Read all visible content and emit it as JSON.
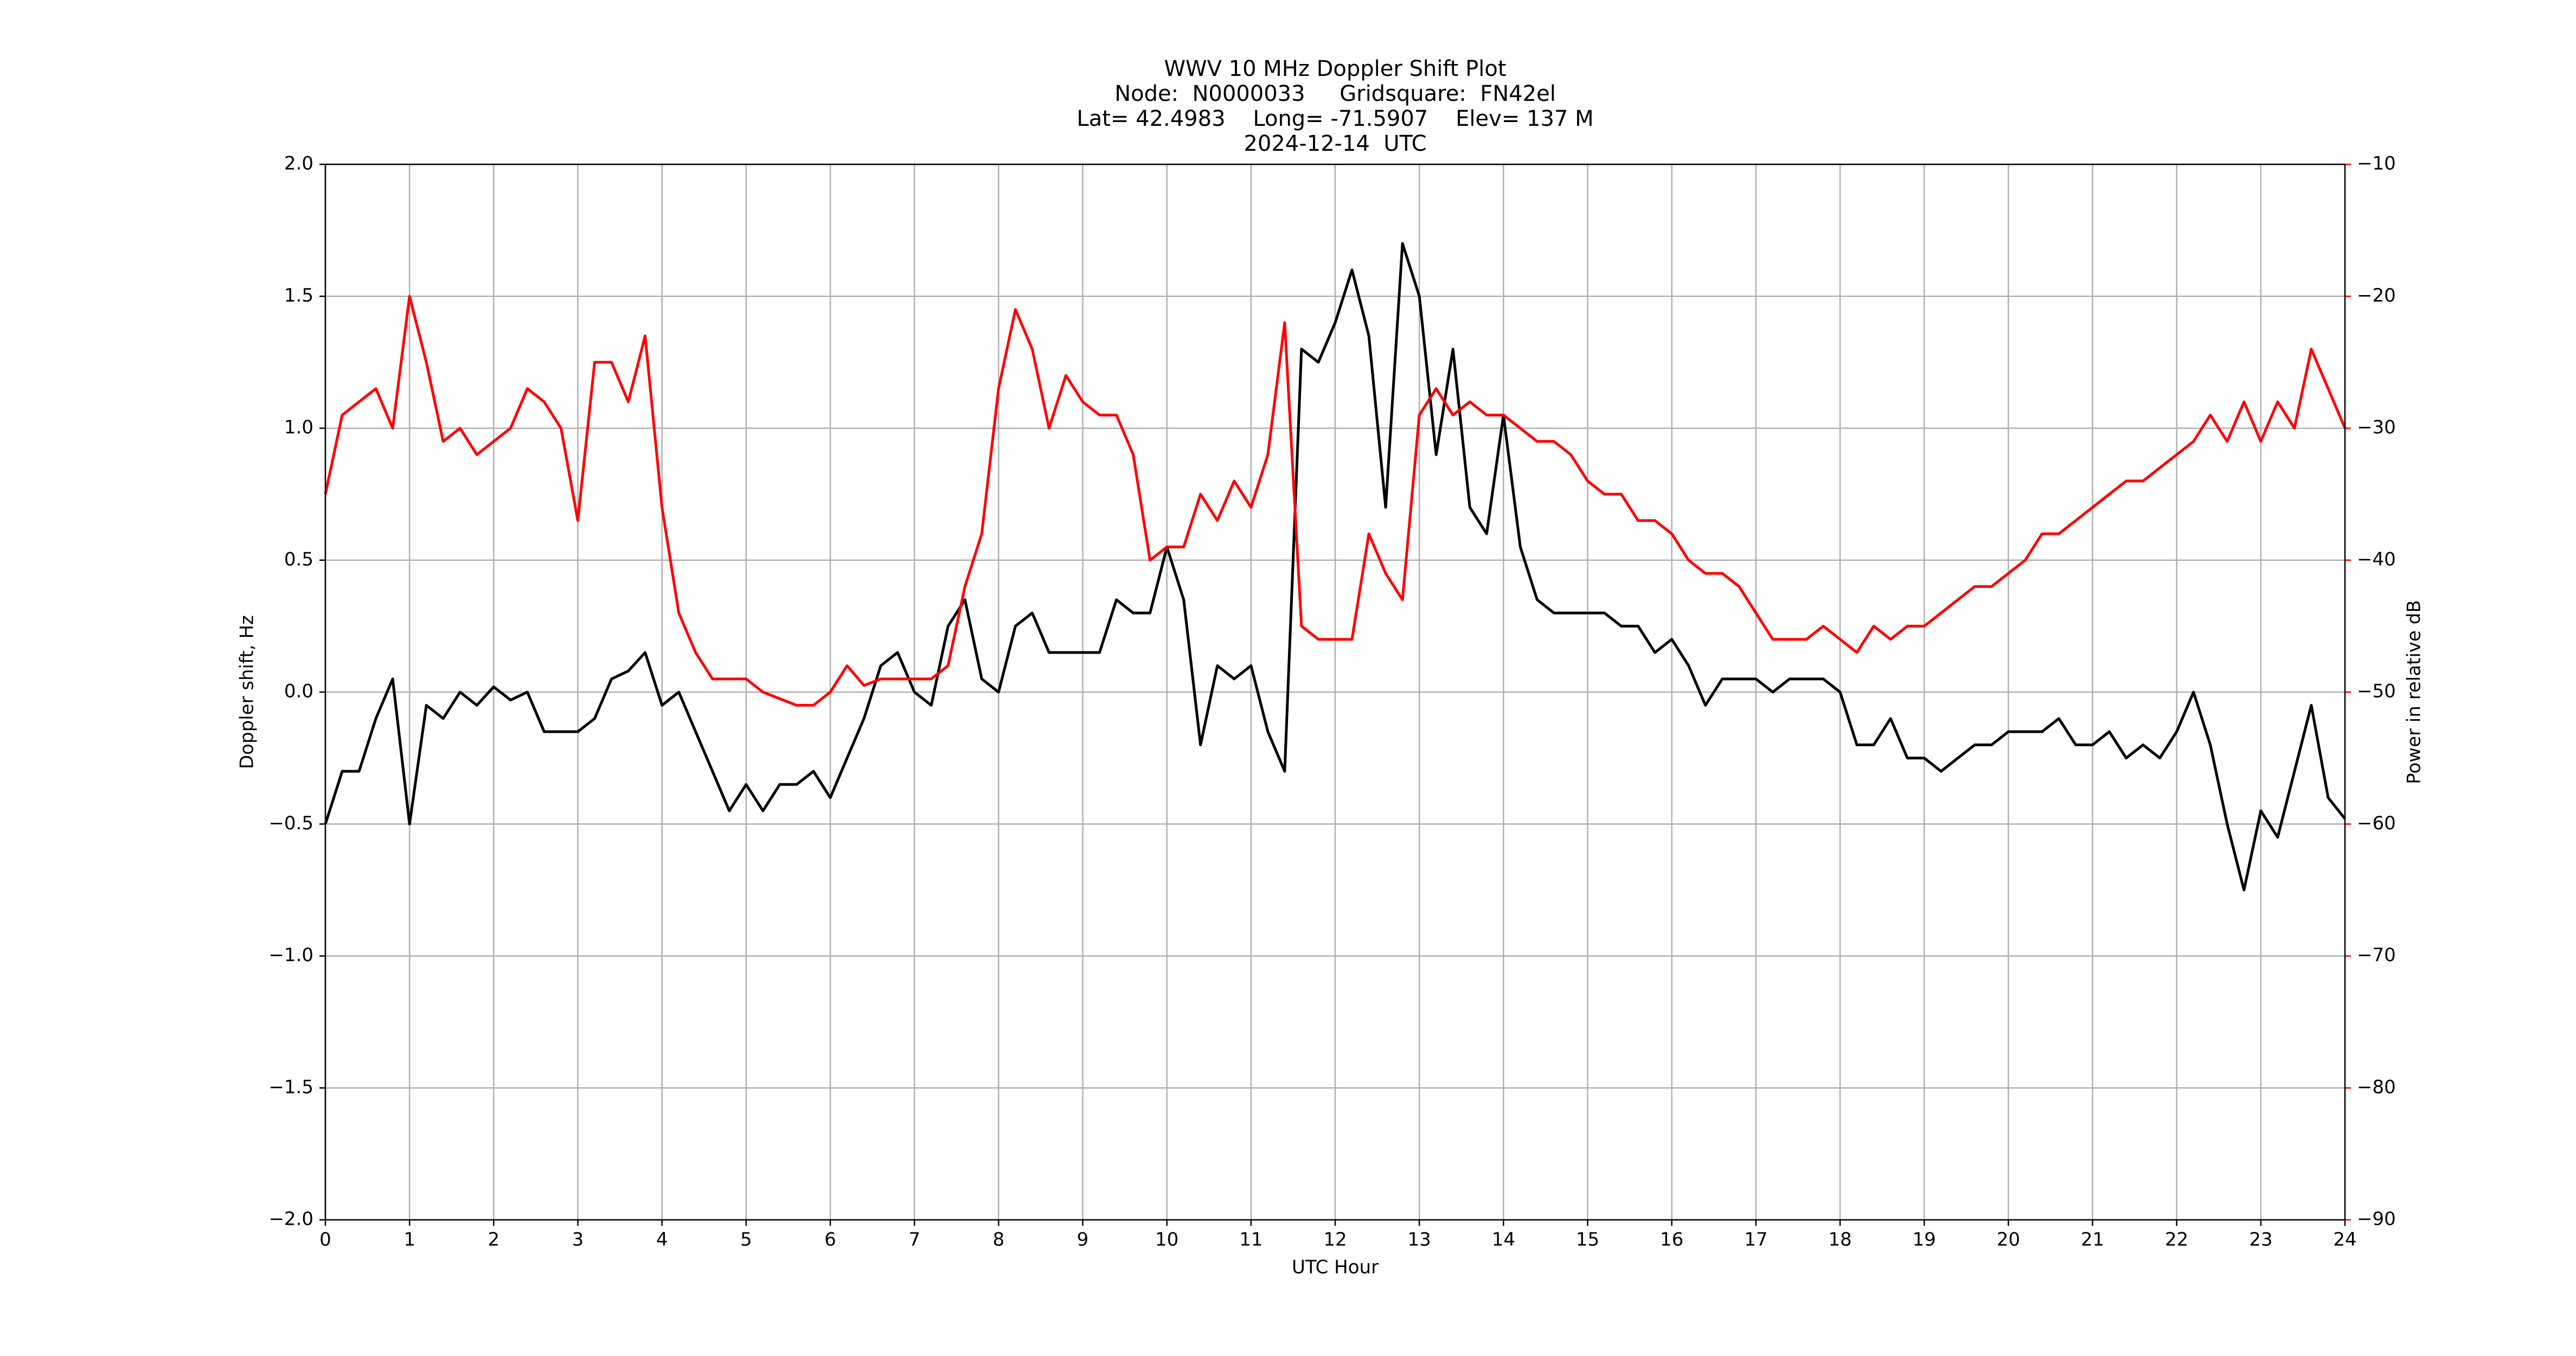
{
  "chart_data": {
    "type": "line",
    "title": "WWV 10 MHz Doppler Shift Plot",
    "subtitle_lines": [
      "Node:  N0000033     Gridsquare:  FN42el",
      "Lat= 42.4983    Long= -71.5907    Elev= 137 M",
      "2024-12-14  UTC"
    ],
    "xlabel": "UTC Hour",
    "ylabel": "Doppler shift, Hz",
    "y2label": "Power in relative dB",
    "x": [
      0,
      0.2,
      0.4,
      0.6,
      0.8,
      1,
      1.2,
      1.4,
      1.6,
      1.8,
      2,
      2.2,
      2.4,
      2.6,
      2.8,
      3,
      3.2,
      3.4,
      3.6,
      3.8,
      4,
      4.2,
      4.4,
      4.6,
      4.8,
      5,
      5.2,
      5.4,
      5.6,
      5.8,
      6,
      6.2,
      6.4,
      6.6,
      6.8,
      7,
      7.2,
      7.4,
      7.6,
      7.8,
      8,
      8.2,
      8.4,
      8.6,
      8.8,
      9,
      9.2,
      9.4,
      9.6,
      9.8,
      10,
      10.2,
      10.4,
      10.6,
      10.8,
      11,
      11.2,
      11.4,
      11.6,
      11.8,
      12,
      12.2,
      12.4,
      12.6,
      12.8,
      13,
      13.2,
      13.4,
      13.6,
      13.8,
      14,
      14.2,
      14.4,
      14.6,
      14.8,
      15,
      15.2,
      15.4,
      15.6,
      15.8,
      16,
      16.2,
      16.4,
      16.6,
      16.8,
      17,
      17.2,
      17.4,
      17.6,
      17.8,
      18,
      18.2,
      18.4,
      18.6,
      18.8,
      19,
      19.2,
      19.4,
      19.6,
      19.8,
      20,
      20.2,
      20.4,
      20.6,
      20.8,
      21,
      21.2,
      21.4,
      21.6,
      21.8,
      22,
      22.2,
      22.4,
      22.6,
      22.8,
      23,
      23.2,
      23.4,
      23.6,
      23.8,
      24
    ],
    "series": [
      {
        "color": "#000000",
        "values": [
          -0.5,
          -0.3,
          -0.3,
          -0.1,
          0.05,
          -0.5,
          -0.05,
          -0.1,
          0,
          -0.05,
          0.02,
          -0.03,
          0,
          -0.15,
          -0.15,
          -0.15,
          -0.1,
          0.05,
          0.08,
          0.15,
          -0.05,
          0,
          -0.15,
          -0.3,
          -0.45,
          -0.35,
          -0.45,
          -0.35,
          -0.35,
          -0.3,
          -0.4,
          -0.25,
          -0.1,
          0.1,
          0.15,
          0,
          -0.05,
          0.25,
          0.35,
          0.05,
          0,
          0.25,
          0.3,
          0.15,
          0.15,
          0.15,
          0.15,
          0.35,
          0.3,
          0.3,
          0.55,
          0.35,
          -0.2,
          0.1,
          0.05,
          0.1,
          -0.15,
          -0.3,
          1.3,
          1.25,
          1.4,
          1.6,
          1.35,
          0.7,
          1.7,
          1.5,
          0.9,
          1.3,
          0.7,
          0.6,
          1.05,
          0.55,
          0.35,
          0.3,
          0.3,
          0.3,
          0.3,
          0.25,
          0.25,
          0.15,
          0.2,
          0.1,
          -0.05,
          0.05,
          0.05,
          0.05,
          0,
          0.05,
          0.05,
          0.05,
          0,
          -0.2,
          -0.2,
          -0.1,
          -0.25,
          -0.25,
          -0.3,
          -0.25,
          -0.2,
          -0.2,
          -0.15,
          -0.15,
          -0.15,
          -0.1,
          -0.2,
          -0.2,
          -0.15,
          -0.25,
          -0.2,
          -0.25,
          -0.15,
          0,
          -0.2,
          -0.5,
          -0.75,
          -0.45,
          -0.55,
          -0.3,
          -0.05,
          -0.4,
          -0.48
        ]
      },
      {
        "color": "#ff0000",
        "axis": "y2",
        "values": [
          -35,
          -29,
          -28,
          -27,
          -30,
          -20,
          -25,
          -31,
          -30,
          -32,
          -31,
          -30,
          -27,
          -28,
          -30,
          -37,
          -25,
          -25,
          -28,
          -23,
          -36,
          -44,
          -47,
          -49,
          -49,
          -49,
          -50,
          -50.5,
          -51,
          -51,
          -50,
          -48,
          -49.5,
          -49,
          -49,
          -49,
          -49,
          -48,
          -42,
          -38,
          -27,
          -21,
          -24,
          -30,
          -26,
          -28,
          -29,
          -29,
          -32,
          -40,
          -39,
          -39,
          -35,
          -37,
          -34,
          -36,
          -32,
          -22,
          -45,
          -46,
          -46,
          -46,
          -38,
          -41,
          -43,
          -29,
          -27,
          -29,
          -28,
          -29,
          -29,
          -30,
          -31,
          -31,
          -32,
          -34,
          -35,
          -35,
          -37,
          -37,
          -38,
          -40,
          -41,
          -41,
          -42,
          -44,
          -46,
          -46,
          -46,
          -45,
          -46,
          -47,
          -45,
          -46,
          -45,
          -45,
          -44,
          -43,
          -42,
          -42,
          -41,
          -40,
          -38,
          -38,
          -37,
          -36,
          -35,
          -34,
          -34,
          -33,
          -32,
          -31,
          -29,
          -31,
          -28,
          -31,
          -28,
          -30,
          -24,
          -27,
          -30
        ]
      }
    ],
    "xlim": [
      0,
      24
    ],
    "xticks": [
      0,
      1,
      2,
      3,
      4,
      5,
      6,
      7,
      8,
      9,
      10,
      11,
      12,
      13,
      14,
      15,
      16,
      17,
      18,
      19,
      20,
      21,
      22,
      23,
      24
    ],
    "ylim": [
      -2,
      2
    ],
    "yticks": [
      {
        "value": -2,
        "label": "−2.0"
      },
      {
        "value": -1.5,
        "label": "−1.5"
      },
      {
        "value": -1,
        "label": "−1.0"
      },
      {
        "value": -0.5,
        "label": "−0.5"
      },
      {
        "value": 0,
        "label": "0.0"
      },
      {
        "value": 0.5,
        "label": "0.5"
      },
      {
        "value": 1,
        "label": "1.0"
      },
      {
        "value": 1.5,
        "label": "1.5"
      },
      {
        "value": 2,
        "label": "2.0"
      }
    ],
    "y2lim": [
      -90,
      -10
    ],
    "y2ticks": [
      {
        "value": -90,
        "label": "−90"
      },
      {
        "value": -80,
        "label": "−80"
      },
      {
        "value": -70,
        "label": "−70"
      },
      {
        "value": -60,
        "label": "−60"
      },
      {
        "value": -50,
        "label": "−50"
      },
      {
        "value": -40,
        "label": "−40"
      },
      {
        "value": -30,
        "label": "−30"
      },
      {
        "value": -20,
        "label": "−20"
      },
      {
        "value": -10,
        "label": "−10"
      }
    ],
    "y2color": "#ff0000",
    "grid": true
  }
}
